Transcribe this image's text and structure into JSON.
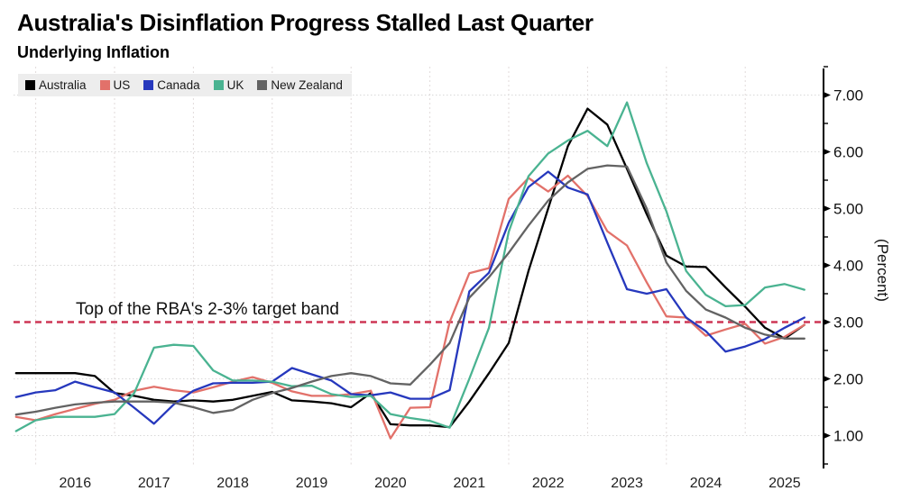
{
  "header": {
    "title": "Australia's Disinflation Progress Stalled Last Quarter",
    "subtitle": "Underlying Inflation"
  },
  "chart_data": {
    "type": "line",
    "x_unit": "quarter",
    "x_start_label": "2015 Q3",
    "x_end_label": "2025 Q3",
    "x_year_labels": [
      "2016",
      "2017",
      "2018",
      "2019",
      "2020",
      "2021",
      "2022",
      "2023",
      "2024",
      "2025"
    ],
    "ylabel": "(Percent)",
    "ylim": [
      0.5,
      7.5
    ],
    "y_tick_labels": [
      "7.00",
      "6.00",
      "5.00",
      "4.00",
      "3.00",
      "2.00",
      "1.00"
    ],
    "y_tick_values": [
      7,
      6,
      5,
      4,
      3,
      2,
      1
    ],
    "y_minor_tick_values": [
      7.5,
      6.5,
      5.5,
      4.5,
      3.5,
      2.5,
      1.5,
      0.5
    ],
    "grid": "dotted",
    "legend_position": "top-left",
    "target_line": {
      "value": 3.0,
      "color": "#ce3655",
      "style": "dashed"
    },
    "annotation": {
      "text": "Top of the RBA's 2-3% target band"
    },
    "series": [
      {
        "name": "Australia",
        "color": "#000000",
        "values": [
          2.1,
          2.1,
          2.1,
          2.1,
          2.05,
          1.75,
          1.7,
          1.63,
          1.6,
          1.62,
          1.6,
          1.63,
          1.7,
          1.77,
          1.62,
          1.6,
          1.57,
          1.5,
          1.75,
          1.2,
          1.18,
          1.18,
          1.15,
          1.6,
          2.1,
          2.63,
          3.9,
          5.0,
          6.1,
          6.76,
          6.48,
          5.7,
          4.9,
          4.17,
          3.98,
          3.97,
          3.61,
          3.27,
          2.9,
          2.71,
          2.95
        ]
      },
      {
        "name": "US",
        "color": "#e2716a",
        "values": [
          1.33,
          1.27,
          1.38,
          1.47,
          1.56,
          1.63,
          1.79,
          1.86,
          1.8,
          1.76,
          1.85,
          1.95,
          2.03,
          1.93,
          1.78,
          1.7,
          1.7,
          1.73,
          1.79,
          0.95,
          1.49,
          1.5,
          3.0,
          3.86,
          3.95,
          5.17,
          5.54,
          5.3,
          5.58,
          5.22,
          4.6,
          4.35,
          3.7,
          3.1,
          3.08,
          2.76,
          2.87,
          2.97,
          2.62,
          2.74,
          2.95
        ]
      },
      {
        "name": "Canada",
        "color": "#2638bd",
        "values": [
          1.68,
          1.76,
          1.8,
          1.95,
          1.85,
          1.76,
          1.49,
          1.21,
          1.55,
          1.79,
          1.92,
          1.93,
          1.93,
          1.95,
          2.19,
          2.08,
          1.97,
          1.73,
          1.71,
          1.76,
          1.65,
          1.65,
          1.8,
          3.54,
          3.87,
          4.75,
          5.38,
          5.65,
          5.37,
          5.25,
          4.4,
          3.58,
          3.5,
          3.58,
          3.08,
          2.84,
          2.48,
          2.57,
          2.7,
          2.9,
          3.08
        ]
      },
      {
        "name": "UK",
        "color": "#4ab391",
        "values": [
          1.08,
          1.27,
          1.33,
          1.33,
          1.33,
          1.38,
          1.75,
          2.55,
          2.6,
          2.58,
          2.15,
          1.97,
          1.97,
          1.95,
          1.87,
          1.88,
          1.73,
          1.68,
          1.7,
          1.38,
          1.31,
          1.26,
          1.14,
          2.0,
          2.9,
          4.59,
          5.57,
          5.97,
          6.2,
          6.37,
          6.1,
          6.87,
          5.8,
          4.95,
          3.9,
          3.48,
          3.28,
          3.3,
          3.61,
          3.67,
          3.57
        ]
      },
      {
        "name": "New Zealand",
        "color": "#636363",
        "values": [
          1.37,
          1.42,
          1.49,
          1.55,
          1.58,
          1.6,
          1.6,
          1.6,
          1.58,
          1.5,
          1.4,
          1.45,
          1.63,
          1.75,
          1.84,
          1.95,
          2.05,
          2.1,
          2.05,
          1.92,
          1.9,
          2.25,
          2.63,
          3.43,
          3.79,
          4.22,
          4.7,
          5.14,
          5.46,
          5.7,
          5.76,
          5.74,
          5.0,
          4.05,
          3.55,
          3.22,
          3.08,
          2.9,
          2.78,
          2.71,
          2.71
        ]
      }
    ]
  }
}
